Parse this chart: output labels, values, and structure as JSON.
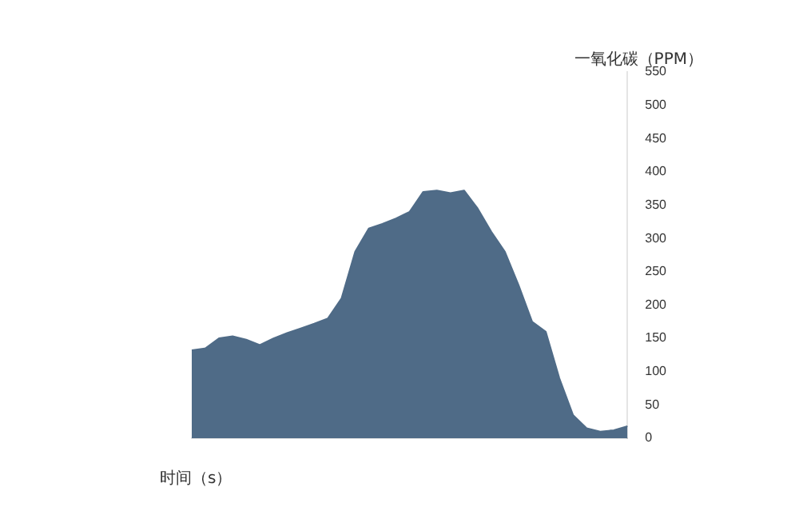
{
  "chart_data": {
    "type": "area",
    "xlabel": "时间（s）",
    "ylabel": "一氧化碳（PPM）",
    "categories": [
      null,
      null,
      null,
      null,
      null,
      null,
      null,
      null,
      null,
      null,
      null,
      null,
      null,
      null,
      null,
      null,
      null,
      null,
      null,
      null,
      null,
      null,
      null,
      null,
      null,
      null,
      null,
      null,
      null,
      null,
      null,
      null,
      null
    ],
    "series": [
      {
        "color": "#4f6b87",
        "values": [
          132,
          135,
          150,
          153,
          148,
          140,
          150,
          158,
          165,
          172,
          180,
          210,
          280,
          315,
          322,
          330,
          340,
          370,
          372,
          368,
          372,
          345,
          310,
          280,
          230,
          175,
          160,
          90,
          35,
          15,
          10,
          12,
          18
        ]
      }
    ],
    "ylim": [
      0,
      550
    ],
    "yticks": [
      0,
      50,
      100,
      150,
      200,
      250,
      300,
      350,
      400,
      450,
      500,
      550
    ],
    "grid": false,
    "legend": false,
    "tick_labels": "y"
  }
}
